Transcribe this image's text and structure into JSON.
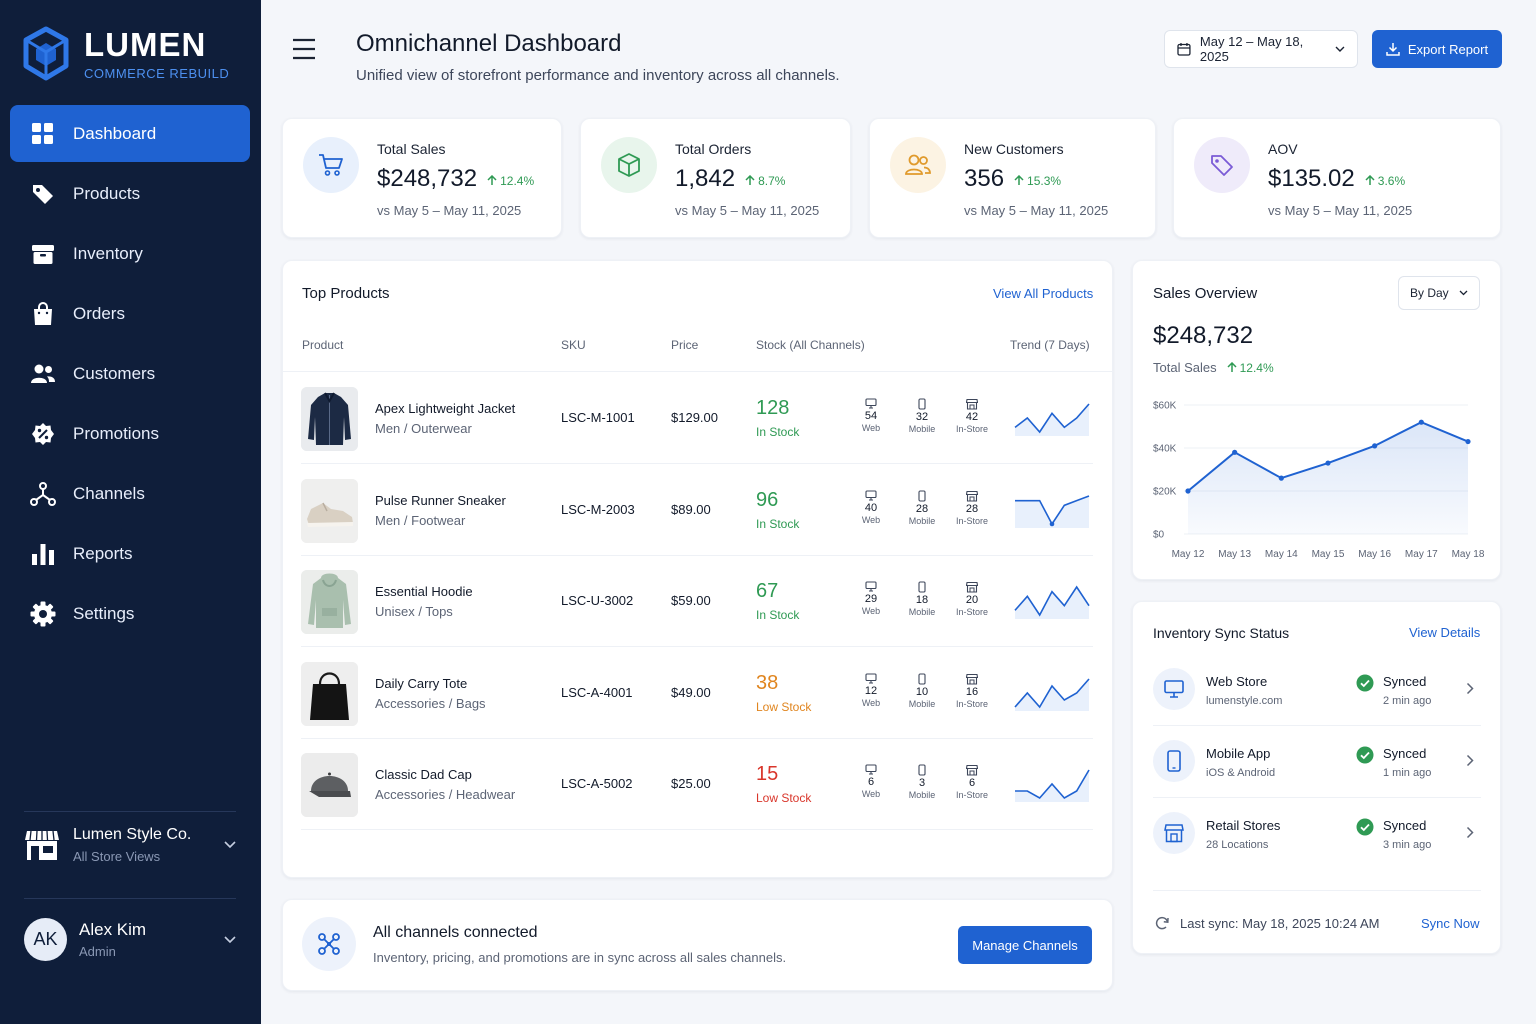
{
  "brand": {
    "name": "LUMEN",
    "subtitle": "COMMERCE REBUILD"
  },
  "nav": [
    {
      "label": "Dashboard",
      "icon": "dashboard-icon",
      "active": true
    },
    {
      "label": "Products",
      "icon": "tag-icon"
    },
    {
      "label": "Inventory",
      "icon": "box-icon"
    },
    {
      "label": "Orders",
      "icon": "shopping-bag-icon"
    },
    {
      "label": "Customers",
      "icon": "users-icon"
    },
    {
      "label": "Promotions",
      "icon": "percent-badge-icon"
    },
    {
      "label": "Channels",
      "icon": "network-icon"
    },
    {
      "label": "Reports",
      "icon": "bar-chart-icon"
    },
    {
      "label": "Settings",
      "icon": "gear-icon"
    }
  ],
  "store": {
    "name": "Lumen Style Co.",
    "sub": "All Store Views"
  },
  "user": {
    "initials": "AK",
    "name": "Alex Kim",
    "role": "Admin"
  },
  "header": {
    "title": "Omnichannel Dashboard",
    "subtitle": "Unified view of storefront performance and inventory across all channels.",
    "date_range": "May 12 – May 18, 2025",
    "export_label": "Export Report"
  },
  "kpis": [
    {
      "label": "Total Sales",
      "value": "$248,732",
      "delta": "12.4%",
      "compare": "vs May 5 – May 11, 2025",
      "icon": "cart-icon",
      "color": "#1f62d1"
    },
    {
      "label": "Total Orders",
      "value": "1,842",
      "delta": "8.7%",
      "compare": "vs May 5 – May 11, 2025",
      "icon": "package-icon",
      "color": "#2f9a54"
    },
    {
      "label": "New Customers",
      "value": "356",
      "delta": "15.3%",
      "compare": "vs May 5 – May 11, 2025",
      "icon": "users-icon",
      "color": "#e09a2c"
    },
    {
      "label": "AOV",
      "value": "$135.02",
      "delta": "3.6%",
      "compare": "vs May 5 – May 11, 2025",
      "icon": "tag-icon",
      "color": "#7a5bd6"
    }
  ],
  "top_products": {
    "title": "Top Products",
    "link": "View All Products",
    "columns": [
      "Product",
      "SKU",
      "Price",
      "Stock (All Channels)",
      "Trend (7 Days)"
    ],
    "channel_labels": [
      "Web",
      "Mobile",
      "In-Store"
    ],
    "rows": [
      {
        "name": "Apex Lightweight Jacket",
        "category": "Men / Outerwear",
        "sku": "LSC-M-1001",
        "price": "$129.00",
        "stock": "128",
        "status": "In Stock",
        "status_color": "#2f9a54",
        "web": "54",
        "mobile": "32",
        "store": "42",
        "trend": [
          3,
          5,
          2,
          6,
          3,
          5,
          8
        ]
      },
      {
        "name": "Pulse Runner Sneaker",
        "category": "Men / Footwear",
        "sku": "LSC-M-2003",
        "price": "$89.00",
        "stock": "96",
        "status": "In Stock",
        "status_color": "#2f9a54",
        "web": "40",
        "mobile": "28",
        "store": "28",
        "trend": [
          6,
          6,
          6,
          1,
          5,
          6,
          7
        ]
      },
      {
        "name": "Essential Hoodie",
        "category": "Unisex / Tops",
        "sku": "LSC-U-3002",
        "price": "$59.00",
        "stock": "67",
        "status": "In Stock",
        "status_color": "#2f9a54",
        "web": "29",
        "mobile": "18",
        "store": "20",
        "trend": [
          3,
          6,
          2,
          7,
          4,
          8,
          4
        ]
      },
      {
        "name": "Daily Carry Tote",
        "category": "Accessories / Bags",
        "sku": "LSC-A-4001",
        "price": "$49.00",
        "stock": "38",
        "status": "Low Stock",
        "status_color": "#e0851f",
        "web": "12",
        "mobile": "10",
        "store": "16",
        "trend": [
          3,
          5,
          3,
          6,
          4,
          5,
          7
        ]
      },
      {
        "name": "Classic Dad Cap",
        "category": "Accessories / Headwear",
        "sku": "LSC-A-5002",
        "price": "$25.00",
        "stock": "15",
        "status": "Low Stock",
        "status_color": "#d9362b",
        "web": "6",
        "mobile": "3",
        "store": "6",
        "trend": [
          3,
          3,
          2,
          4,
          2,
          3,
          6
        ]
      }
    ]
  },
  "sales_overview": {
    "title": "Sales Overview",
    "group": "By Day",
    "total": "$248,732",
    "total_label": "Total Sales",
    "delta": "12.4%"
  },
  "chart_data": {
    "type": "area",
    "categories": [
      "May 12",
      "May 13",
      "May 14",
      "May 15",
      "May 16",
      "May 17",
      "May 18"
    ],
    "series": [
      {
        "values": [
          20000,
          38000,
          26000,
          33000,
          41000,
          52000,
          43000
        ]
      }
    ],
    "yticks": [
      "$0",
      "$20K",
      "$40K",
      "$60K"
    ],
    "ylim": [
      0,
      60000
    ],
    "color": "#1f62d1"
  },
  "inventory_sync": {
    "title": "Inventory Sync Status",
    "link": "View Details",
    "items": [
      {
        "name": "Web Store",
        "sub": "lumenstyle.com",
        "status": "Synced",
        "time": "2 min ago",
        "icon": "monitor-icon"
      },
      {
        "name": "Mobile App",
        "sub": "iOS & Android",
        "status": "Synced",
        "time": "1 min ago",
        "icon": "smartphone-icon"
      },
      {
        "name": "Retail Stores",
        "sub": "28 Locations",
        "status": "Synced",
        "time": "3 min ago",
        "icon": "storefront-icon"
      }
    ],
    "last_sync": "Last sync: May 18, 2025 10:24 AM",
    "sync_now": "Sync Now"
  },
  "banner": {
    "title": "All channels connected",
    "subtitle": "Inventory, pricing, and promotions are in sync across all sales channels.",
    "button": "Manage Channels"
  }
}
